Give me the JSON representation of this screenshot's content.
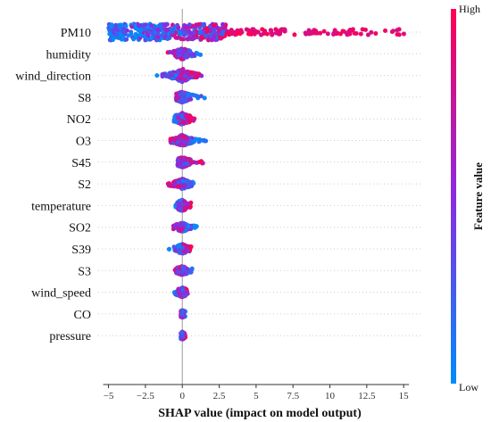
{
  "chart_data": {
    "type": "scatter",
    "subtype": "shap-beeswarm",
    "xlabel": "SHAP value (impact on model output)",
    "ylabel": "",
    "xlim": [
      -5.7,
      16.2
    ],
    "x_ticks": [
      -5,
      -2.5,
      0,
      2.5,
      5,
      7.5,
      10,
      12.5,
      15
    ],
    "x_tick_labels": [
      "−5",
      "−2.5",
      "0",
      "2.5",
      "5",
      "7.5",
      "10",
      "12.5",
      "15"
    ],
    "zero_line": true,
    "features": [
      {
        "name": "PM10",
        "min": -5.2,
        "max": 15.4,
        "width": 1.0
      },
      {
        "name": "humidity",
        "min": -1.0,
        "max": 1.4,
        "width": 0.7
      },
      {
        "name": "wind_direction",
        "min": -2.3,
        "max": 1.3,
        "width": 0.85
      },
      {
        "name": "S8",
        "min": -0.4,
        "max": 1.6,
        "width": 0.7
      },
      {
        "name": "NO2",
        "min": -0.6,
        "max": 1.0,
        "width": 0.75
      },
      {
        "name": "O3",
        "min": -0.8,
        "max": 1.6,
        "width": 0.7
      },
      {
        "name": "S45",
        "min": -0.3,
        "max": 1.4,
        "width": 0.65
      },
      {
        "name": "S2",
        "min": -1.0,
        "max": 0.8,
        "width": 0.65
      },
      {
        "name": "temperature",
        "min": -0.5,
        "max": 0.6,
        "width": 0.7
      },
      {
        "name": "SO2",
        "min": -0.6,
        "max": 1.0,
        "width": 0.55
      },
      {
        "name": "S39",
        "min": -0.9,
        "max": 0.6,
        "width": 0.6
      },
      {
        "name": "S3",
        "min": -0.5,
        "max": 0.8,
        "width": 0.55
      },
      {
        "name": "wind_speed",
        "min": -0.6,
        "max": 0.4,
        "width": 0.6
      },
      {
        "name": "CO",
        "min": -0.1,
        "max": 0.2,
        "width": 0.45
      },
      {
        "name": "pressure",
        "min": -0.1,
        "max": 0.2,
        "width": 0.45
      }
    ],
    "colorbar": {
      "title": "Feature value",
      "high_label": "High",
      "low_label": "Low",
      "high_color": "#ff0052",
      "mid_color": "#8a2be2",
      "low_color": "#008bfb"
    },
    "grid": false,
    "legend": "colorbar-right"
  }
}
